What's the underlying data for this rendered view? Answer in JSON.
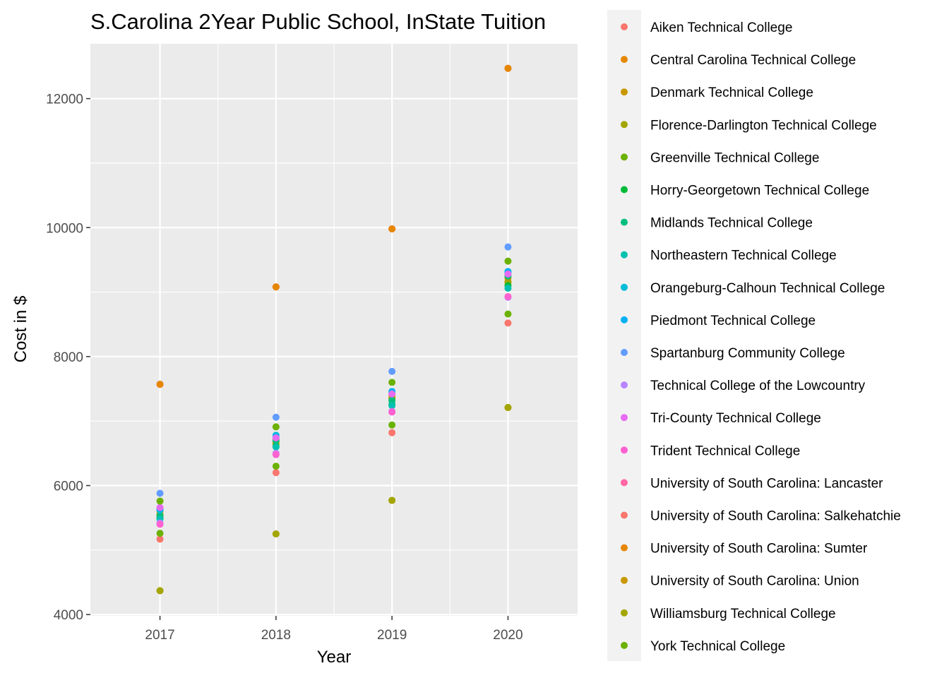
{
  "chart_data": {
    "type": "scatter",
    "title": "S.Carolina 2Year Public School, InState Tuition",
    "xlabel": "Year",
    "ylabel": "Cost in $",
    "x_categories": [
      "2017",
      "2018",
      "2019",
      "2020"
    ],
    "yticks": [
      4000,
      6000,
      8000,
      10000,
      12000
    ],
    "ylim": [
      3980,
      12850
    ],
    "grid": true,
    "legend_position": "right",
    "series": [
      {
        "name": "Aiken Technical College",
        "color": "#F8766D",
        "values": [
          5170,
          6200,
          6820,
          8520
        ]
      },
      {
        "name": "Central Carolina Technical College",
        "color": "#E58700",
        "values": [
          5520,
          6680,
          7360,
          9160
        ]
      },
      {
        "name": "Denmark Technical College",
        "color": "#C99800",
        "values": [
          5600,
          6720,
          7400,
          9220
        ]
      },
      {
        "name": "Florence-Darlington Technical College",
        "color": "#A3A500",
        "values": [
          5550,
          6650,
          7340,
          9150
        ]
      },
      {
        "name": "Greenville Technical College",
        "color": "#6BB100",
        "values": [
          5260,
          6300,
          6940,
          8660
        ]
      },
      {
        "name": "Horry-Georgetown Technical College",
        "color": "#00BA38",
        "values": [
          5500,
          6610,
          7260,
          9100
        ]
      },
      {
        "name": "Midlands Technical College",
        "color": "#00BF7D",
        "values": [
          5530,
          6700,
          7320,
          9250
        ]
      },
      {
        "name": "Northeastern Technical College",
        "color": "#00C0AF",
        "values": [
          5480,
          6600,
          7240,
          9060
        ]
      },
      {
        "name": "Orangeburg-Calhoun Technical College",
        "color": "#00BCD8",
        "values": [
          5620,
          6780,
          7440,
          9300
        ]
      },
      {
        "name": "Piedmont Technical College",
        "color": "#00B0F6",
        "values": [
          5640,
          6750,
          7460,
          9320
        ]
      },
      {
        "name": "Spartanburg Community College",
        "color": "#619CFF",
        "values": [
          5880,
          7060,
          7770,
          9700
        ]
      },
      {
        "name": "Technical College of the Lowcountry",
        "color": "#B983FF",
        "values": [
          5420,
          6500,
          7150,
          8920
        ]
      },
      {
        "name": "Tri-County Technical College",
        "color": "#E76BF3",
        "values": [
          5660,
          6740,
          7420,
          9280
        ]
      },
      {
        "name": "Trident Technical College",
        "color": "#FD61D1",
        "values": [
          5400,
          6480,
          7140,
          8930
        ]
      },
      {
        "name": "University of South Carolina: Lancaster",
        "color": "#FF67A4",
        "values": [
          7570,
          9080,
          9980,
          12470
        ]
      },
      {
        "name": "University of South Carolina: Salkehatchie",
        "color": "#F8766D",
        "values": [
          7570,
          9080,
          9980,
          12470
        ]
      },
      {
        "name": "University of South Carolina: Sumter",
        "color": "#E58700",
        "values": [
          7570,
          9080,
          9980,
          12470
        ]
      },
      {
        "name": "University of South Carolina: Union",
        "color": "#C99800",
        "values": [
          4370,
          5250,
          5770,
          7210
        ]
      },
      {
        "name": "Williamsburg Technical College",
        "color": "#A3A500",
        "values": [
          4370,
          5250,
          5770,
          7210
        ]
      },
      {
        "name": "York Technical College",
        "color": "#6BB100",
        "values": [
          5760,
          6910,
          7600,
          9480
        ]
      }
    ]
  }
}
